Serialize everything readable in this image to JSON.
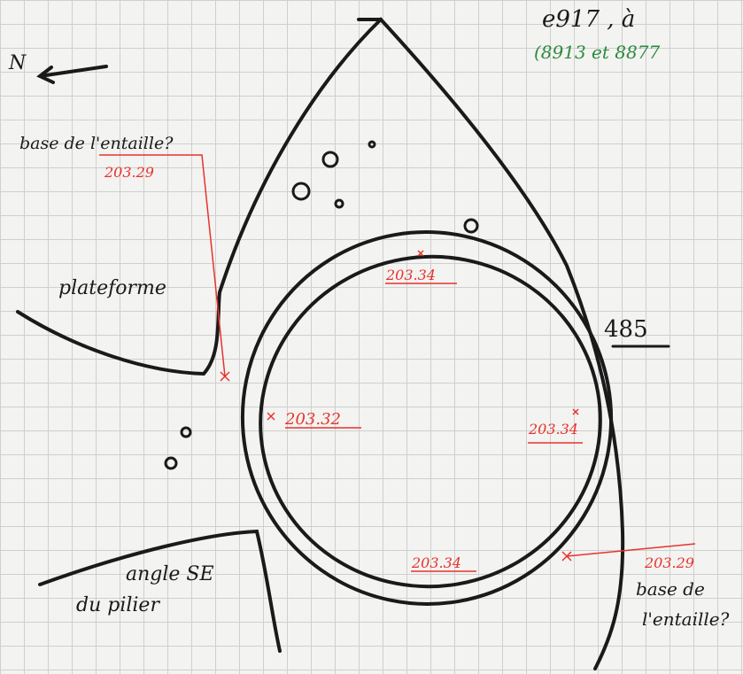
{
  "header": {
    "line1": "e917 , à",
    "line2": "(8913 et 8877"
  },
  "north": "N",
  "labels": {
    "base_nw": "base de l'entaille?",
    "level_nw": "203.29",
    "plateforme": "plateforme",
    "level_top": "203.34",
    "structure": "485",
    "level_left": "203.32",
    "level_right": "203.34",
    "level_bottom": "203.34",
    "pilier": [
      "angle SE",
      "du pilier"
    ],
    "level_se": "203.29",
    "base_se": [
      "base de",
      "l'entaille?"
    ]
  }
}
